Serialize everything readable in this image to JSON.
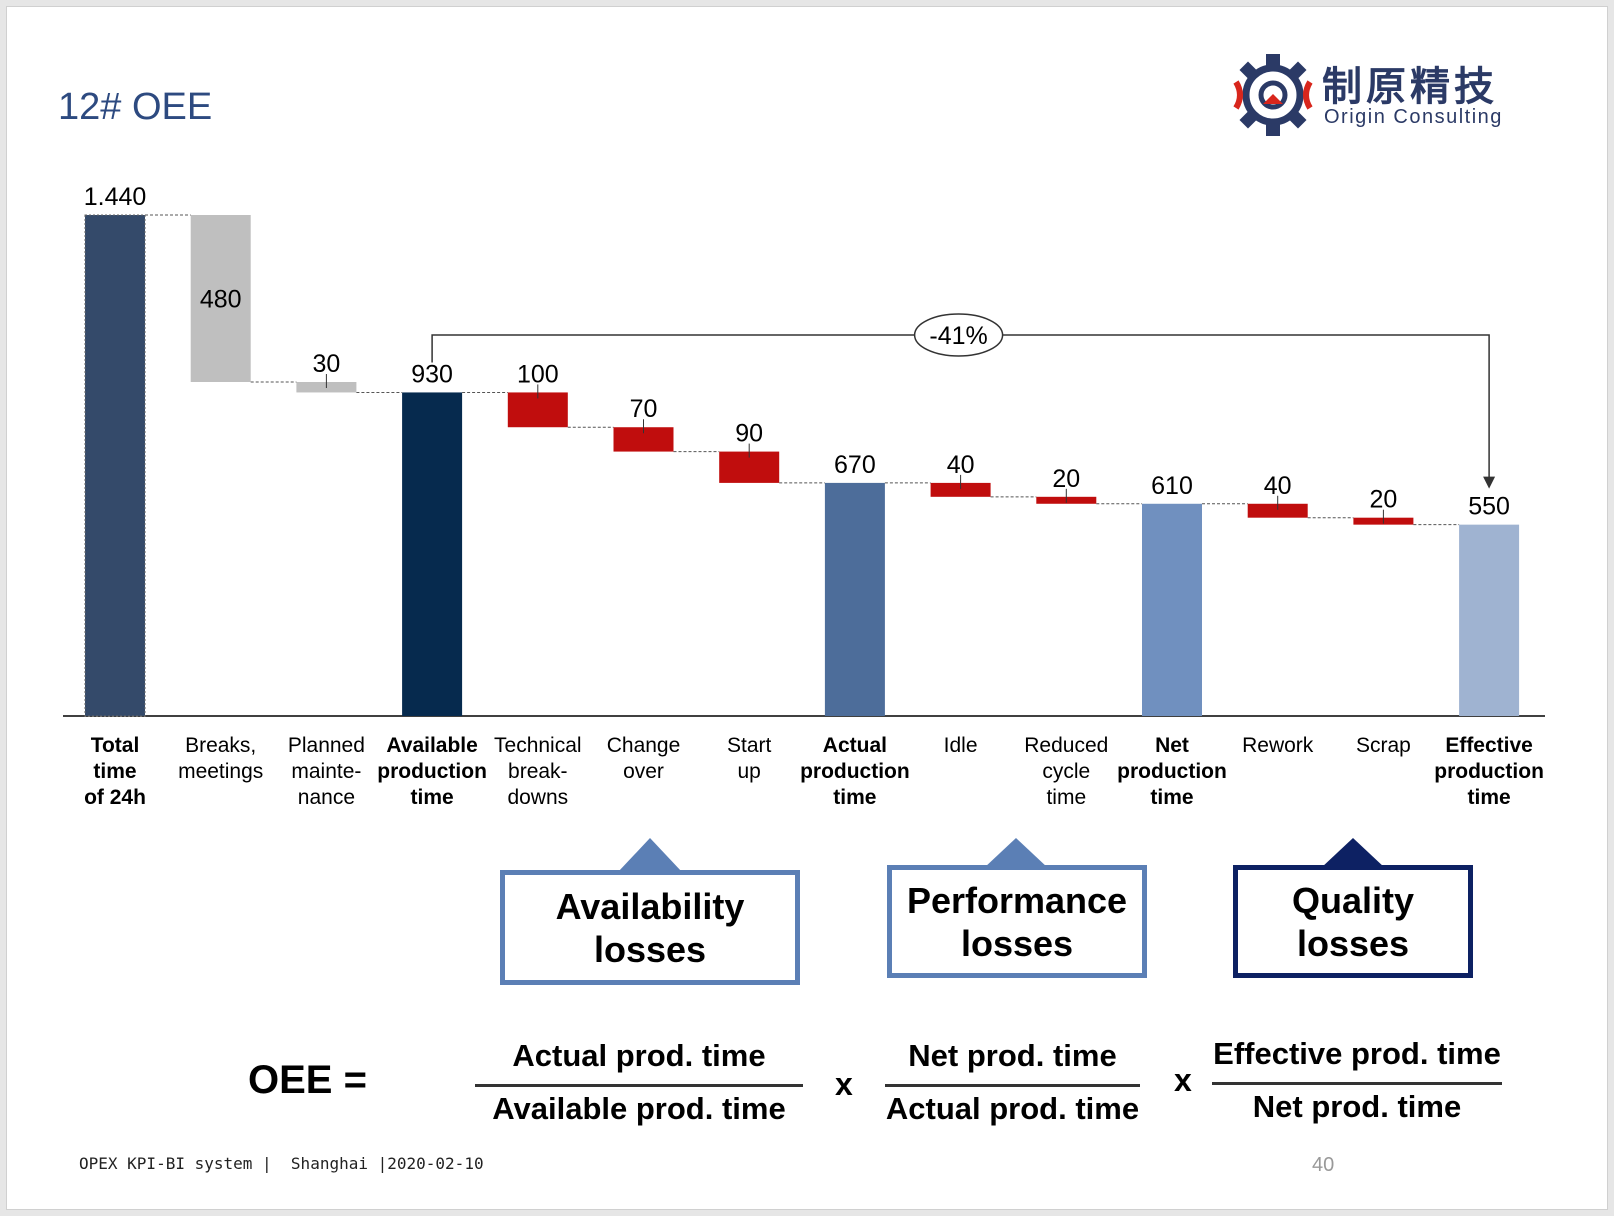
{
  "header": {
    "title": "12# OEE",
    "logo_cn": "制原精技",
    "logo_en": "Origin Consulting"
  },
  "chart_data": {
    "type": "waterfall",
    "title": "12# OEE",
    "ylim": [
      0,
      1440
    ],
    "steps": [
      {
        "label": "Total time of 24h",
        "value": 1440,
        "display": "1.440",
        "kind": "total"
      },
      {
        "label": "Breaks, meetings",
        "value": 480,
        "display": "480",
        "kind": "planned-loss"
      },
      {
        "label": "Planned mainte-nance",
        "value": 30,
        "display": "30",
        "kind": "planned-loss"
      },
      {
        "label": "Available production time",
        "value": 930,
        "display": "930",
        "kind": "subtotal"
      },
      {
        "label": "Technical break-downs",
        "value": 100,
        "display": "100",
        "kind": "loss"
      },
      {
        "label": "Change over",
        "value": 70,
        "display": "70",
        "kind": "loss"
      },
      {
        "label": "Start up",
        "value": 90,
        "display": "90",
        "kind": "loss"
      },
      {
        "label": "Actual production time",
        "value": 670,
        "display": "670",
        "kind": "subtotal"
      },
      {
        "label": "Idle",
        "value": 40,
        "display": "40",
        "kind": "loss"
      },
      {
        "label": "Reduced cycle time",
        "value": 20,
        "display": "20",
        "kind": "loss"
      },
      {
        "label": "Net production time",
        "value": 610,
        "display": "610",
        "kind": "subtotal"
      },
      {
        "label": "Rework",
        "value": 40,
        "display": "40",
        "kind": "loss"
      },
      {
        "label": "Scrap",
        "value": 20,
        "display": "20",
        "kind": "loss"
      },
      {
        "label": "Effective production time",
        "value": 550,
        "display": "550",
        "kind": "subtotal"
      }
    ],
    "category_lines": [
      [
        "Total",
        "time",
        "of 24h"
      ],
      [
        "Breaks,",
        "meetings"
      ],
      [
        "Planned",
        "mainte-",
        "nance"
      ],
      [
        "Available",
        "production",
        "time"
      ],
      [
        "Technical",
        "break-",
        "downs"
      ],
      [
        "Change",
        "over"
      ],
      [
        "Start",
        "up"
      ],
      [
        "Actual",
        "production",
        "time"
      ],
      [
        "Idle"
      ],
      [
        "Reduced",
        "cycle",
        "time"
      ],
      [
        "Net",
        "production",
        "time"
      ],
      [
        "Rework"
      ],
      [
        "Scrap"
      ],
      [
        "Effective",
        "production",
        "time"
      ]
    ],
    "bold_categories": [
      0,
      3,
      7,
      10,
      13
    ],
    "annotation": {
      "text": "-41%",
      "from": "Available production time",
      "to": "Effective production time"
    },
    "colors": {
      "total": "#344a6a",
      "planned-loss": "#bfbfbf",
      "loss": "#c00d0d",
      "subtotal": [
        "#062a4e",
        "#4d6d9a",
        "#7090bf",
        "#9fb3d1"
      ]
    }
  },
  "boxes": {
    "availability": "Availability losses",
    "performance": "Performance losses",
    "quality": "Quality losses"
  },
  "formula": {
    "lhs": "OEE =",
    "times": "x",
    "fractions": [
      {
        "num": "Actual prod. time",
        "den": "Available prod. time"
      },
      {
        "num": "Net prod. time",
        "den": "Actual prod. time"
      },
      {
        "num": "Effective prod. time",
        "den": "Net prod. time"
      }
    ]
  },
  "footer": {
    "text": "OPEX KPI-BI system |  Shanghai |2020-02-10",
    "page": "40"
  }
}
